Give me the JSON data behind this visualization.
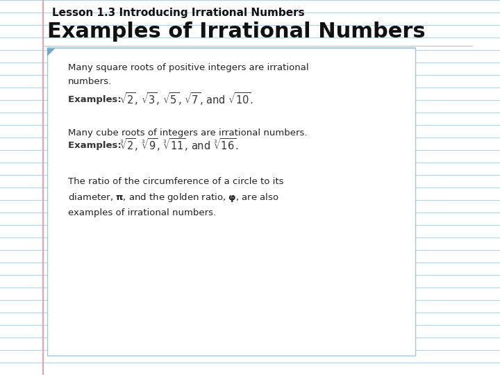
{
  "title_small": "Lesson 1.3 Introducing Irrational Numbers",
  "title_large": "Examples of Irrational Numbers",
  "bg_color": "#ffffff",
  "line_color": "#afd6e8",
  "pink_line_color": "#e8a0b0",
  "box_border_color": "#9bc8e0",
  "corner_color": "#6fa8c8",
  "para1_text": "Many square roots of positive integers are irrational\nnumbers.",
  "para1_example_label": "Examples: ",
  "para1_example_math": "$\\sqrt{2}$, $\\sqrt{3}$, $\\sqrt{5}$, $\\sqrt{7}$, and $\\sqrt{10}$.",
  "para2_text": "Many cube roots of integers are irrational numbers.",
  "para2_example_label": "Examples: ",
  "para2_example_math": "$\\sqrt[3]{2}$, $\\sqrt[3]{9}$, $\\sqrt[3]{11}$, and $\\sqrt[3]{16}$.",
  "para3_text": "The ratio of the circumference of a circle to its\ndiameter, $\\mathbf{\\pi}$, and the golden ratio, $\\mathbf{\\varphi}$, are also\nexamples of irrational numbers.",
  "title_small_fontsize": 11,
  "title_large_fontsize": 22,
  "body_fontsize": 9.5,
  "example_label_fontsize": 9.5,
  "example_math_fontsize": 10.5
}
